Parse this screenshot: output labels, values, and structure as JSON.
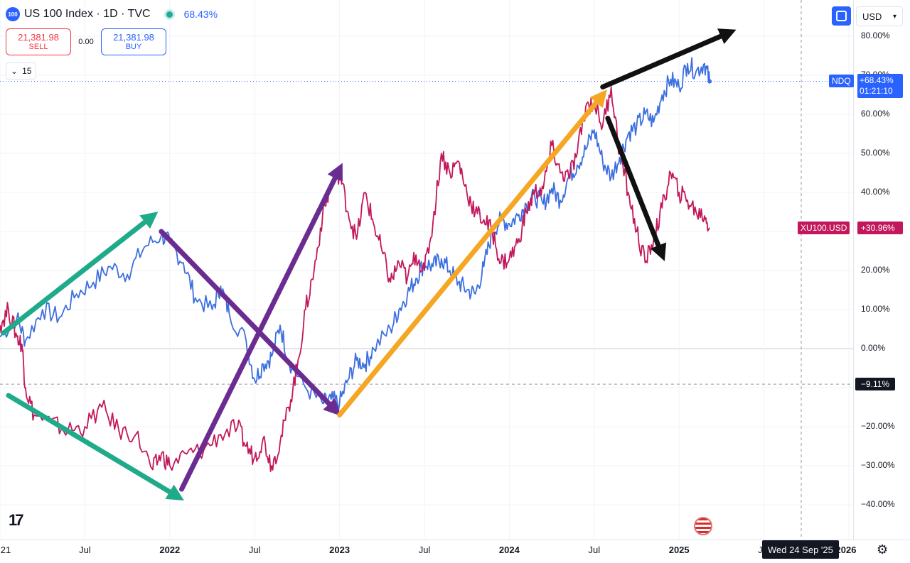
{
  "header": {
    "symbol_badge": "100",
    "title": "US 100 Index · 1D · TVC",
    "change": "68.43%"
  },
  "trade": {
    "sell_price": "21,381.98",
    "sell_label": "SELL",
    "spread": "0.00",
    "buy_price": "21,381.98",
    "buy_label": "BUY"
  },
  "volume_toggle": {
    "value": "15"
  },
  "toolbar": {
    "currency": "USD"
  },
  "price_scale": {
    "ticks": [
      "80.00%",
      "70.00%",
      "60.00%",
      "50.00%",
      "40.00%",
      "30.00%",
      "20.00%",
      "10.00%",
      "0.00%",
      "−10.00%",
      "−20.00%",
      "−30.00%",
      "−40.00%"
    ]
  },
  "series_tags": {
    "ndq_name": "NDQ",
    "ndq_value": "+68.43%",
    "ndq_countdown": "01:21:10",
    "xu_name": "XU100.USD",
    "xu_value": "+30.96%",
    "crosshair_value": "−9.11%"
  },
  "time_scale": {
    "labels": [
      "21",
      "Jul",
      "2022",
      "Jul",
      "2023",
      "Jul",
      "2024",
      "Jul",
      "2025",
      "Jul",
      "2026"
    ],
    "crosshair_date": "Wed 24 Sep '25"
  },
  "logo": "17",
  "chart_data": {
    "type": "line",
    "x_range": [
      2021.0,
      2026.0
    ],
    "y_unit": "% change",
    "ylim": [
      -45,
      85
    ],
    "crosshair_y": -9.11,
    "series": [
      {
        "name": "NDQ",
        "color": "#3d6fe0",
        "last_value": 68.43,
        "points": [
          [
            2021.0,
            3
          ],
          [
            2021.1,
            8
          ],
          [
            2021.15,
            2
          ],
          [
            2021.25,
            10
          ],
          [
            2021.35,
            8
          ],
          [
            2021.45,
            14
          ],
          [
            2021.55,
            17
          ],
          [
            2021.65,
            21
          ],
          [
            2021.75,
            19
          ],
          [
            2021.85,
            26
          ],
          [
            2021.95,
            29
          ],
          [
            2022.0,
            27
          ],
          [
            2022.08,
            22
          ],
          [
            2022.15,
            13
          ],
          [
            2022.25,
            10
          ],
          [
            2022.3,
            16
          ],
          [
            2022.35,
            9
          ],
          [
            2022.45,
            2
          ],
          [
            2022.5,
            -8
          ],
          [
            2022.55,
            -4
          ],
          [
            2022.6,
            -2
          ],
          [
            2022.65,
            6
          ],
          [
            2022.7,
            -3
          ],
          [
            2022.8,
            -10
          ],
          [
            2022.9,
            -14
          ],
          [
            2022.95,
            -13
          ],
          [
            2023.0,
            -14
          ],
          [
            2023.05,
            -8
          ],
          [
            2023.1,
            -3
          ],
          [
            2023.15,
            -4
          ],
          [
            2023.2,
            0
          ],
          [
            2023.3,
            5
          ],
          [
            2023.35,
            10
          ],
          [
            2023.4,
            14
          ],
          [
            2023.45,
            18
          ],
          [
            2023.5,
            22
          ],
          [
            2023.55,
            21
          ],
          [
            2023.6,
            23
          ],
          [
            2023.65,
            20
          ],
          [
            2023.7,
            17
          ],
          [
            2023.75,
            15
          ],
          [
            2023.8,
            14
          ],
          [
            2023.85,
            21
          ],
          [
            2023.9,
            30
          ],
          [
            2023.95,
            33
          ],
          [
            2024.0,
            32
          ],
          [
            2024.05,
            34
          ],
          [
            2024.1,
            37
          ],
          [
            2024.15,
            39
          ],
          [
            2024.2,
            37
          ],
          [
            2024.25,
            41
          ],
          [
            2024.3,
            38
          ],
          [
            2024.35,
            44
          ],
          [
            2024.4,
            47
          ],
          [
            2024.45,
            51
          ],
          [
            2024.5,
            56
          ],
          [
            2024.55,
            48
          ],
          [
            2024.6,
            44
          ],
          [
            2024.65,
            49
          ],
          [
            2024.7,
            55
          ],
          [
            2024.75,
            57
          ],
          [
            2024.8,
            60
          ],
          [
            2024.85,
            58
          ],
          [
            2024.9,
            65
          ],
          [
            2024.95,
            69
          ],
          [
            2025.0,
            67
          ],
          [
            2025.05,
            73
          ],
          [
            2025.1,
            71
          ],
          [
            2025.15,
            73
          ],
          [
            2025.18,
            68.43
          ]
        ]
      },
      {
        "name": "XU100.USD",
        "color": "#c2185b",
        "last_value": 30.96,
        "points": [
          [
            2021.0,
            6
          ],
          [
            2021.05,
            10
          ],
          [
            2021.1,
            3
          ],
          [
            2021.13,
            1
          ],
          [
            2021.15,
            -10
          ],
          [
            2021.2,
            -17
          ],
          [
            2021.3,
            -19
          ],
          [
            2021.4,
            -21
          ],
          [
            2021.5,
            -20
          ],
          [
            2021.6,
            -15
          ],
          [
            2021.7,
            -21
          ],
          [
            2021.8,
            -22
          ],
          [
            2021.9,
            -31
          ],
          [
            2021.95,
            -27
          ],
          [
            2022.0,
            -30
          ],
          [
            2022.1,
            -27
          ],
          [
            2022.2,
            -26
          ],
          [
            2022.3,
            -22
          ],
          [
            2022.4,
            -20
          ],
          [
            2022.45,
            -25
          ],
          [
            2022.5,
            -28
          ],
          [
            2022.55,
            -23
          ],
          [
            2022.6,
            -30
          ],
          [
            2022.65,
            -24
          ],
          [
            2022.7,
            -15
          ],
          [
            2022.75,
            -5
          ],
          [
            2022.8,
            10
          ],
          [
            2022.85,
            20
          ],
          [
            2022.9,
            34
          ],
          [
            2022.95,
            42
          ],
          [
            2023.0,
            45
          ],
          [
            2023.05,
            35
          ],
          [
            2023.1,
            28
          ],
          [
            2023.15,
            40
          ],
          [
            2023.2,
            32
          ],
          [
            2023.25,
            25
          ],
          [
            2023.3,
            17
          ],
          [
            2023.35,
            22
          ],
          [
            2023.4,
            18
          ],
          [
            2023.45,
            24
          ],
          [
            2023.5,
            20
          ],
          [
            2023.55,
            32
          ],
          [
            2023.6,
            50
          ],
          [
            2023.65,
            45
          ],
          [
            2023.7,
            48
          ],
          [
            2023.75,
            40
          ],
          [
            2023.8,
            35
          ],
          [
            2023.85,
            33
          ],
          [
            2023.9,
            30
          ],
          [
            2023.95,
            22
          ],
          [
            2024.0,
            23
          ],
          [
            2024.05,
            27
          ],
          [
            2024.1,
            35
          ],
          [
            2024.15,
            40
          ],
          [
            2024.2,
            41
          ],
          [
            2024.25,
            52
          ],
          [
            2024.3,
            45
          ],
          [
            2024.35,
            44
          ],
          [
            2024.4,
            50
          ],
          [
            2024.45,
            62
          ],
          [
            2024.5,
            63
          ],
          [
            2024.55,
            57
          ],
          [
            2024.6,
            67
          ],
          [
            2024.65,
            50
          ],
          [
            2024.7,
            40
          ],
          [
            2024.75,
            30
          ],
          [
            2024.8,
            22
          ],
          [
            2024.85,
            28
          ],
          [
            2024.9,
            36
          ],
          [
            2024.95,
            45
          ],
          [
            2025.0,
            40
          ],
          [
            2025.05,
            38
          ],
          [
            2025.1,
            35
          ],
          [
            2025.15,
            34
          ],
          [
            2025.18,
            30.96
          ]
        ]
      }
    ],
    "annotations": [
      {
        "color": "#1fab8a",
        "from": [
          2021.02,
          4
        ],
        "to": [
          2021.9,
          34
        ]
      },
      {
        "color": "#1fab8a",
        "from": [
          2021.05,
          -12
        ],
        "to": [
          2022.05,
          -38
        ]
      },
      {
        "color": "#6a2c91",
        "from": [
          2021.95,
          30
        ],
        "to": [
          2022.98,
          -16
        ]
      },
      {
        "color": "#6a2c91",
        "from": [
          2022.07,
          -36
        ],
        "to": [
          2023.0,
          46
        ]
      },
      {
        "color": "#f5a623",
        "from": [
          2023.0,
          -17
        ],
        "to": [
          2024.55,
          65
        ]
      },
      {
        "color": "#111111",
        "from": [
          2024.55,
          67
        ],
        "to": [
          2025.3,
          81
        ]
      },
      {
        "color": "#111111",
        "from": [
          2024.58,
          59
        ],
        "to": [
          2024.9,
          24
        ]
      }
    ]
  }
}
